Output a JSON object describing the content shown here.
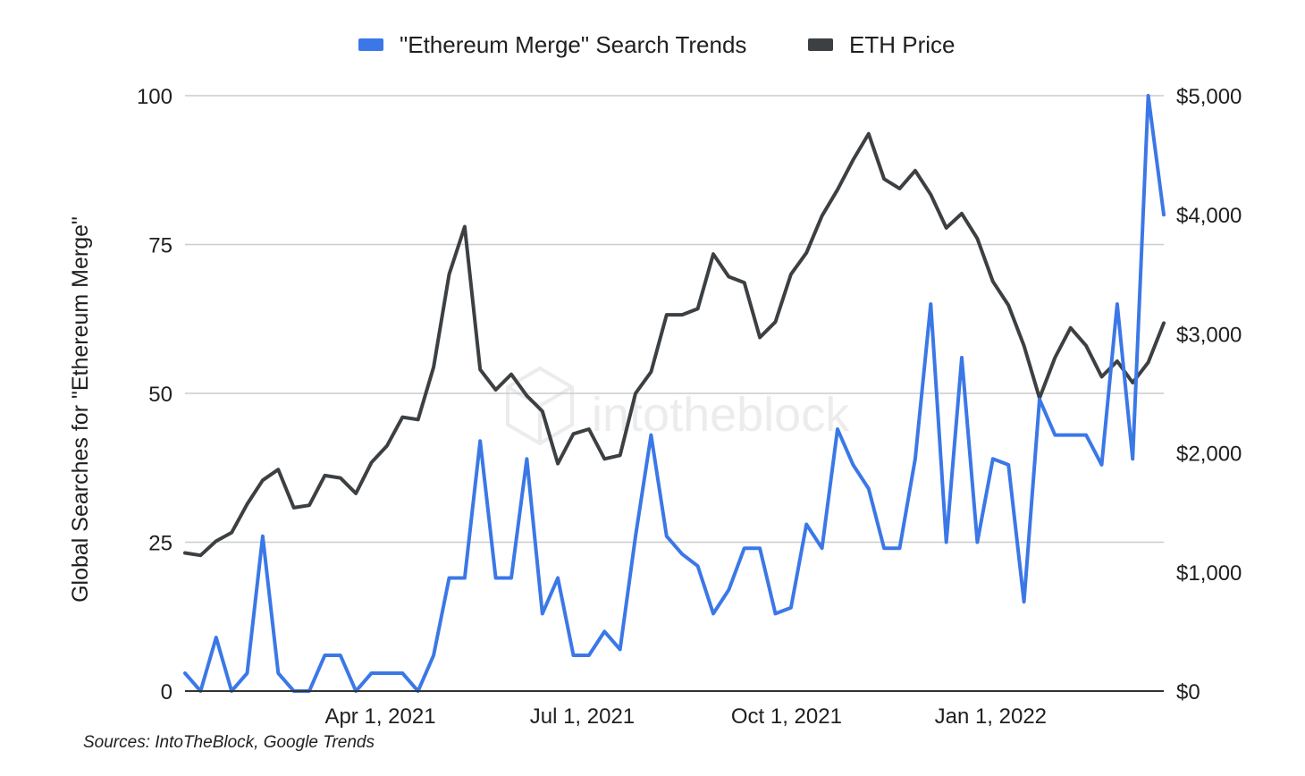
{
  "colors": {
    "search": "#3b78e7",
    "price": "#3c4043",
    "grid": "#cccccc",
    "axis": "#333333",
    "watermark": "#ececec"
  },
  "chart_data": {
    "type": "line",
    "legend": {
      "position": "top",
      "items": [
        {
          "label": "\"Ethereum Merge\" Search Trends",
          "color": "#3b78e7"
        },
        {
          "label": "ETH Price",
          "color": "#3c4043"
        }
      ]
    },
    "title": "",
    "ylabel_left": "Global Searches for \"Ethereum Merge\"",
    "ylabel_right": "",
    "xlabel": "",
    "x_ticks": [
      "Apr 1, 2021",
      "Jul 1, 2021",
      "Oct 1, 2021",
      "Jan 1, 2022"
    ],
    "y_left": {
      "min": 0,
      "max": 100,
      "ticks": [
        0,
        25,
        50,
        75,
        100
      ],
      "tick_labels": [
        "0",
        "25",
        "50",
        "75",
        "100"
      ]
    },
    "y_right": {
      "min": 0,
      "max": 5000,
      "ticks": [
        0,
        1000,
        2000,
        3000,
        4000,
        5000
      ],
      "tick_labels": [
        "$0",
        "$1,000",
        "$2,000",
        "$3,000",
        "$4,000",
        "$5,000"
      ]
    },
    "grid": true,
    "x_start": "2021-01-03",
    "x_step_days": 7,
    "series": [
      {
        "name": "\"Ethereum Merge\" Search Trends",
        "axis": "left",
        "color": "#3b78e7",
        "values": [
          3,
          0,
          9,
          0,
          3,
          26,
          3,
          0,
          0,
          6,
          6,
          0,
          3,
          3,
          3,
          0,
          6,
          19,
          19,
          42,
          19,
          19,
          39,
          13,
          19,
          6,
          6,
          10,
          7,
          26,
          43,
          26,
          23,
          21,
          13,
          17,
          24,
          24,
          13,
          14,
          28,
          24,
          44,
          38,
          34,
          24,
          24,
          39,
          65,
          25,
          56,
          25,
          39,
          38,
          15,
          49,
          43,
          43,
          43,
          38,
          65,
          39,
          100,
          80
        ]
      },
      {
        "name": "ETH Price",
        "axis": "right",
        "color": "#3c4043",
        "values": [
          1160,
          1140,
          1260,
          1330,
          1570,
          1770,
          1860,
          1540,
          1560,
          1810,
          1790,
          1660,
          1920,
          2060,
          2300,
          2280,
          2720,
          3500,
          3900,
          2700,
          2530,
          2660,
          2480,
          2350,
          1910,
          2160,
          2200,
          1950,
          1980,
          2500,
          2680,
          3160,
          3160,
          3210,
          3670,
          3480,
          3430,
          2970,
          3100,
          3500,
          3680,
          3990,
          4210,
          4460,
          4680,
          4300,
          4220,
          4370,
          4170,
          3890,
          4010,
          3800,
          3440,
          3240,
          2900,
          2460,
          2800,
          3050,
          2900,
          2640,
          2770,
          2590,
          2760,
          3090
        ]
      }
    ]
  },
  "watermark": {
    "text": "intotheblock",
    "icon": "cube-logo-icon"
  },
  "source_note": "Sources: IntoTheBlock, Google Trends"
}
